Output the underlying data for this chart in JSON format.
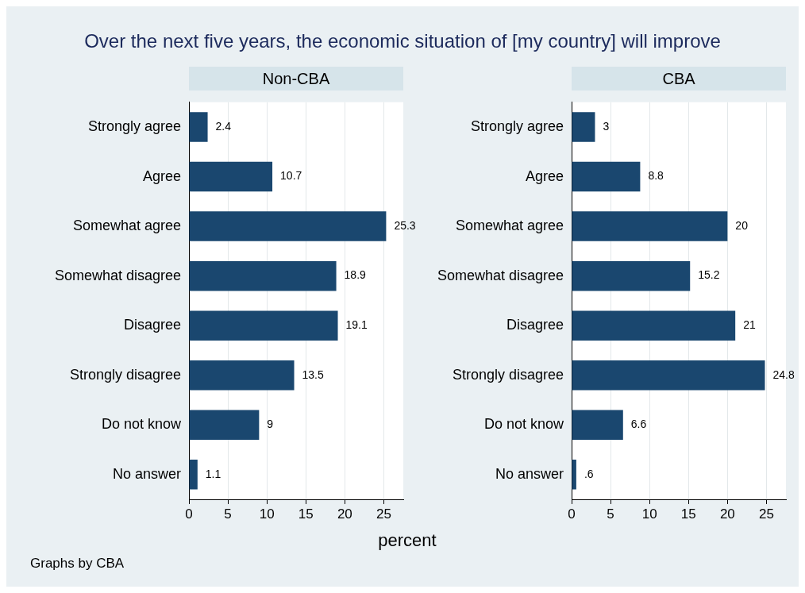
{
  "chart_data": [
    {
      "type": "bar",
      "orientation": "horizontal",
      "title": "Over the next five years, the economic situation of [my country] will improve",
      "subtitle": "Non-CBA",
      "xlabel": "percent",
      "annotations": [
        "Graphs by CBA"
      ],
      "categories": [
        "Strongly agree",
        "Agree",
        "Somewhat agree",
        "Somewhat disagree",
        "Disagree",
        "Strongly disagree",
        "Do not know",
        "No answer"
      ],
      "values": [
        2.4,
        10.7,
        25.3,
        18.9,
        19.1,
        13.5,
        9,
        1.1
      ],
      "value_labels": [
        "2.4",
        "10.7",
        "25.3",
        "18.9",
        "19.1",
        "13.5",
        "9",
        "1.1"
      ],
      "color": "#1a476f",
      "xlim": [
        0,
        27.5
      ],
      "xticks": [
        0,
        5,
        10,
        15,
        20,
        25
      ],
      "grid": "x"
    },
    {
      "type": "bar",
      "orientation": "horizontal",
      "subtitle": "CBA",
      "categories": [
        "Strongly agree",
        "Agree",
        "Somewhat agree",
        "Somewhat disagree",
        "Disagree",
        "Strongly disagree",
        "Do not know",
        "No answer"
      ],
      "values": [
        3,
        8.8,
        20,
        15.2,
        21,
        24.8,
        6.6,
        0.6
      ],
      "value_labels": [
        "3",
        "8.8",
        "20",
        "15.2",
        "21",
        "24.8",
        "6.6",
        ".6"
      ],
      "color": "#1a476f",
      "xlim": [
        0,
        27.5
      ],
      "xticks": [
        0,
        5,
        10,
        15,
        20,
        25
      ],
      "grid": "x"
    }
  ]
}
